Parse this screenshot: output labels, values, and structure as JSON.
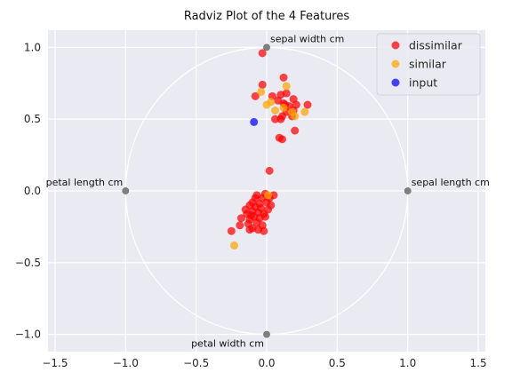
{
  "chart_data": {
    "type": "scatter",
    "title": "Radviz Plot of the 4 Features",
    "xlabel": "",
    "ylabel": "",
    "xlim": [
      -1.55,
      1.55
    ],
    "ylim": [
      -1.12,
      1.12
    ],
    "x_ticks": [
      -1.5,
      -1.0,
      -0.5,
      0.0,
      0.5,
      1.0,
      1.5
    ],
    "y_ticks": [
      -1.0,
      -0.5,
      0.0,
      0.5,
      1.0
    ],
    "x_tick_labels": [
      "−1.5",
      "−1.0",
      "−0.5",
      "0.0",
      "0.5",
      "1.0",
      "1.5"
    ],
    "y_tick_labels": [
      "−1.0",
      "−0.5",
      "0.0",
      "0.5",
      "1.0"
    ],
    "grid": true,
    "legend_position": "top-right",
    "background": "#eaeaf2",
    "circle": {
      "center": [
        0,
        0
      ],
      "radius": 1
    },
    "anchors": [
      {
        "label": "sepal width cm",
        "x": 0.0,
        "y": 1.0
      },
      {
        "label": "sepal length cm",
        "x": 1.0,
        "y": 0.0
      },
      {
        "label": "petal length cm",
        "x": -1.0,
        "y": 0.0
      },
      {
        "label": "petal width cm",
        "x": 0.0,
        "y": -1.0
      }
    ],
    "series": [
      {
        "name": "dissimilar",
        "color": "#ff0000",
        "points": [
          [
            -0.03,
            0.96
          ],
          [
            0.12,
            0.79
          ],
          [
            -0.03,
            0.74
          ],
          [
            -0.08,
            0.66
          ],
          [
            0.04,
            0.66
          ],
          [
            0.1,
            0.67
          ],
          [
            0.14,
            0.68
          ],
          [
            0.19,
            0.64
          ],
          [
            0.08,
            0.63
          ],
          [
            0.12,
            0.61
          ],
          [
            0.16,
            0.59
          ],
          [
            0.21,
            0.6
          ],
          [
            0.29,
            0.6
          ],
          [
            0.06,
            0.5
          ],
          [
            0.11,
            0.52
          ],
          [
            0.14,
            0.55
          ],
          [
            0.18,
            0.52
          ],
          [
            0.1,
            0.5
          ],
          [
            0.2,
            0.42
          ],
          [
            0.09,
            0.37
          ],
          [
            0.11,
            0.36
          ],
          [
            0.19,
            0.56
          ],
          [
            0.13,
            0.6
          ],
          [
            0.02,
            0.14
          ],
          [
            -0.01,
            -0.02
          ],
          [
            0.05,
            -0.03
          ],
          [
            -0.07,
            -0.03
          ],
          [
            -0.03,
            -0.05
          ],
          [
            -0.1,
            -0.08
          ],
          [
            0.0,
            -0.08
          ],
          [
            -0.05,
            -0.09
          ],
          [
            0.03,
            -0.1
          ],
          [
            -0.08,
            -0.11
          ],
          [
            -0.12,
            -0.1
          ],
          [
            -0.04,
            -0.12
          ],
          [
            0.01,
            -0.13
          ],
          [
            -0.1,
            -0.14
          ],
          [
            -0.06,
            -0.15
          ],
          [
            -0.02,
            -0.16
          ],
          [
            -0.14,
            -0.16
          ],
          [
            -0.09,
            -0.18
          ],
          [
            -0.05,
            -0.19
          ],
          [
            -0.12,
            -0.2
          ],
          [
            -0.18,
            -0.19
          ],
          [
            -0.07,
            -0.22
          ],
          [
            -0.13,
            -0.23
          ],
          [
            -0.03,
            -0.24
          ],
          [
            -0.1,
            -0.26
          ],
          [
            -0.19,
            -0.24
          ],
          [
            -0.06,
            -0.27
          ],
          [
            -0.12,
            -0.27
          ],
          [
            -0.25,
            -0.28
          ],
          [
            -0.02,
            -0.28
          ],
          [
            -0.15,
            -0.13
          ],
          [
            -0.01,
            -0.18
          ],
          [
            -0.08,
            -0.05
          ],
          [
            0.02,
            -0.05
          ],
          [
            -0.11,
            -0.17
          ]
        ]
      },
      {
        "name": "similar",
        "color": "#ffa500",
        "points": [
          [
            0.14,
            0.73
          ],
          [
            -0.04,
            0.69
          ],
          [
            0.03,
            0.62
          ],
          [
            0.0,
            0.6
          ],
          [
            0.06,
            0.56
          ],
          [
            0.12,
            0.58
          ],
          [
            0.18,
            0.55
          ],
          [
            0.2,
            0.52
          ],
          [
            0.27,
            0.55
          ],
          [
            0.01,
            -0.03
          ],
          [
            -0.23,
            -0.38
          ]
        ]
      },
      {
        "name": "input",
        "color": "#0000ff",
        "points": [
          [
            -0.09,
            0.48
          ]
        ]
      }
    ]
  }
}
